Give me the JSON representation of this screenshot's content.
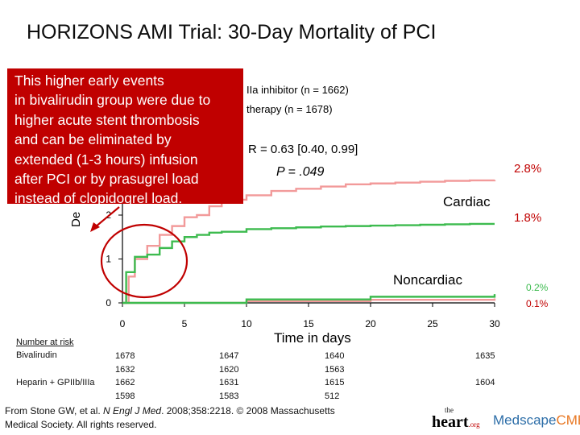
{
  "slide": {
    "title": "HORIZONS AMI Trial: 30-Day Mortality of PCI"
  },
  "callout": {
    "lines": [
      "This higher early events",
      "in bivalirudin group were due to",
      "higher acute stent thrombosis",
      "and can be eliminated by",
      "extended (1-3 hours) infusion",
      "after PCI or by prasugrel load",
      "instead of clopidogrel load."
    ],
    "bg_color": "#c00000"
  },
  "chart_data": {
    "type": "line",
    "title": "HORIZONS AMI Trial: 30-Day Mortality of PCI",
    "xlabel": "Time in days",
    "ylabel_partial": "De",
    "xlim": [
      0,
      30
    ],
    "ylim": [
      0,
      4
    ],
    "x_ticks": [
      "0",
      "5",
      "10",
      "15",
      "20",
      "25",
      "30"
    ],
    "y_ticks": [
      "0",
      "1",
      "2"
    ],
    "legend_partial": [
      "IIa inhibitor (n = 1662)",
      "therapy (n = 1678)"
    ],
    "hr_text": "R = 0.63 [0.40, 0.99]",
    "p_text": "P = .049",
    "colors": {
      "heparin": "#f29a9a",
      "bivalirudin": "#3dbb4f"
    },
    "series": [
      {
        "name": "Heparin + GPIIb/IIIa Cardiac",
        "color": "#f29a9a",
        "x": [
          0,
          0.5,
          1,
          2,
          3,
          4,
          5,
          6,
          7,
          8,
          9,
          10,
          12,
          14,
          16,
          18,
          20,
          22,
          24,
          26,
          28,
          30
        ],
        "y": [
          0,
          0.6,
          1.0,
          1.3,
          1.55,
          1.75,
          1.95,
          2.0,
          2.2,
          2.3,
          2.35,
          2.45,
          2.55,
          2.6,
          2.65,
          2.7,
          2.72,
          2.74,
          2.76,
          2.78,
          2.79,
          2.8
        ]
      },
      {
        "name": "Bivalirudin Cardiac",
        "color": "#3dbb4f",
        "x": [
          0,
          0.3,
          1,
          2,
          3,
          4,
          5,
          6,
          7,
          8,
          10,
          12,
          14,
          16,
          18,
          20,
          22,
          24,
          26,
          28,
          30
        ],
        "y": [
          0,
          0.7,
          1.05,
          1.1,
          1.25,
          1.4,
          1.5,
          1.55,
          1.6,
          1.62,
          1.68,
          1.7,
          1.72,
          1.74,
          1.75,
          1.76,
          1.77,
          1.78,
          1.79,
          1.8,
          1.8
        ]
      },
      {
        "name": "Heparin + GPIIb/IIIa Noncardiac",
        "color": "#f29a9a",
        "x": [
          0,
          10,
          20,
          30
        ],
        "y": [
          0,
          0.04,
          0.07,
          0.1
        ]
      },
      {
        "name": "Bivalirudin Noncardiac",
        "color": "#3dbb4f",
        "x": [
          0,
          10,
          20,
          30
        ],
        "y": [
          0,
          0.08,
          0.14,
          0.2
        ]
      }
    ],
    "annotations": [
      {
        "text": "2.8%",
        "color": "#c00000"
      },
      {
        "text": "1.8%",
        "color": "#c00000"
      },
      {
        "text": "Cardiac",
        "color": "#000000"
      },
      {
        "text": "Noncardiac",
        "color": "#000000"
      },
      {
        "text": "0.2%",
        "color": "#3dbb4f"
      },
      {
        "text": "0.1%",
        "color": "#c00000"
      }
    ]
  },
  "risk_table": {
    "header": "Number at risk",
    "bival_label": "Bivalirudin",
    "hep_label": "Heparin + GPIIb/IIIa",
    "bival_row1": [
      "1678",
      "1647",
      "1640",
      "1635"
    ],
    "bival_row2": [
      "1632",
      "1620",
      "1563"
    ],
    "hep_row1": [
      "1662",
      "1631",
      "1615",
      "1604"
    ],
    "hep_row2": [
      "1598",
      "1583",
      "512"
    ]
  },
  "source": {
    "prefix": "From Stone GW, et al. ",
    "journal": "N Engl J Med",
    "rest": ". 2008;358:2218. © 2008 Massachusetts",
    "line2": "Medical Society. All rights reserved."
  },
  "logos": {
    "heart_small": "the",
    "heart_big": "heart",
    "heart_suffix": ".org",
    "medscape": "Medscape",
    "cme": "CME"
  }
}
